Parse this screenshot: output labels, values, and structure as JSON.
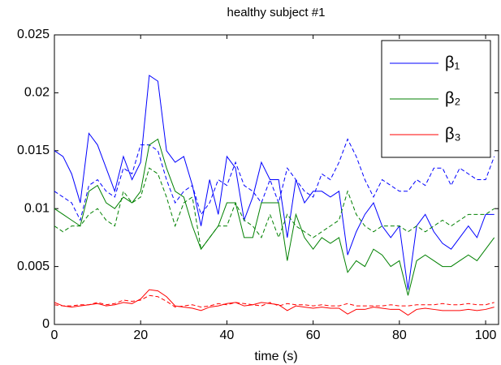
{
  "chart_data": {
    "type": "line",
    "title": "healthy subject #1",
    "x_label": "time (s)",
    "x": [
      0,
      2,
      4,
      6,
      8,
      10,
      12,
      14,
      16,
      18,
      20,
      22,
      24,
      26,
      28,
      30,
      32,
      34,
      36,
      38,
      40,
      42,
      44,
      46,
      48,
      50,
      52,
      54,
      56,
      58,
      60,
      62,
      64,
      66,
      68,
      70,
      72,
      74,
      76,
      78,
      80,
      82,
      84,
      86,
      88,
      90,
      92,
      94,
      96,
      98,
      100,
      102
    ],
    "series": [
      {
        "name": "β₁",
        "color": "#0000ff",
        "dashed": false,
        "values": [
          0.015,
          0.0145,
          0.013,
          0.0105,
          0.0165,
          0.0155,
          0.0135,
          0.0115,
          0.0145,
          0.0125,
          0.014,
          0.0215,
          0.021,
          0.015,
          0.014,
          0.0145,
          0.012,
          0.0085,
          0.0125,
          0.0095,
          0.0145,
          0.0135,
          0.009,
          0.011,
          0.014,
          0.0125,
          0.0125,
          0.0075,
          0.0125,
          0.0105,
          0.0115,
          0.0115,
          0.011,
          0.0115,
          0.006,
          0.008,
          0.0095,
          0.0105,
          0.0085,
          0.0075,
          0.0085,
          0.003,
          0.0085,
          0.0095,
          0.008,
          0.007,
          0.0065,
          0.0075,
          0.0085,
          0.0075,
          0.0095,
          0.0095
        ]
      },
      {
        "color": "#0000ff",
        "dashed": true,
        "values": [
          0.0115,
          0.011,
          0.0105,
          0.009,
          0.012,
          0.0125,
          0.0115,
          0.011,
          0.0135,
          0.013,
          0.0155,
          0.0155,
          0.015,
          0.0125,
          0.0105,
          0.0115,
          0.012,
          0.0095,
          0.0105,
          0.0125,
          0.012,
          0.014,
          0.012,
          0.0115,
          0.0105,
          0.0125,
          0.0105,
          0.0135,
          0.0125,
          0.0115,
          0.011,
          0.013,
          0.0125,
          0.014,
          0.016,
          0.0145,
          0.0125,
          0.011,
          0.0125,
          0.012,
          0.0115,
          0.0115,
          0.0125,
          0.012,
          0.0135,
          0.0135,
          0.012,
          0.0135,
          0.013,
          0.0125,
          0.0125,
          0.0145
        ]
      },
      {
        "name": "β₂",
        "color": "#008000",
        "dashed": false,
        "values": [
          0.01,
          0.0095,
          0.009,
          0.0085,
          0.0115,
          0.012,
          0.0105,
          0.01,
          0.011,
          0.0105,
          0.0115,
          0.0155,
          0.016,
          0.0135,
          0.0115,
          0.011,
          0.0085,
          0.0065,
          0.0075,
          0.0085,
          0.0105,
          0.0105,
          0.0075,
          0.0075,
          0.0105,
          0.0105,
          0.0105,
          0.0055,
          0.0095,
          0.0075,
          0.0065,
          0.0075,
          0.007,
          0.0075,
          0.0045,
          0.0055,
          0.005,
          0.0065,
          0.006,
          0.005,
          0.0055,
          0.0025,
          0.0055,
          0.006,
          0.0055,
          0.005,
          0.005,
          0.0055,
          0.006,
          0.0055,
          0.0065,
          0.0075
        ]
      },
      {
        "color": "#008000",
        "dashed": true,
        "values": [
          0.0085,
          0.008,
          0.0085,
          0.0085,
          0.0095,
          0.01,
          0.009,
          0.0085,
          0.0115,
          0.0105,
          0.011,
          0.0135,
          0.013,
          0.011,
          0.0085,
          0.0105,
          0.011,
          0.0065,
          0.0075,
          0.0085,
          0.0085,
          0.0105,
          0.009,
          0.0085,
          0.0075,
          0.0095,
          0.0075,
          0.0095,
          0.0085,
          0.008,
          0.0075,
          0.008,
          0.0085,
          0.009,
          0.0115,
          0.0095,
          0.0085,
          0.008,
          0.0085,
          0.0085,
          0.0085,
          0.008,
          0.0085,
          0.008,
          0.0085,
          0.009,
          0.0085,
          0.009,
          0.0095,
          0.0095,
          0.0095,
          0.01
        ]
      },
      {
        "name": "β₃",
        "color": "#ff0000",
        "dashed": false,
        "values": [
          0.0019,
          0.0016,
          0.0015,
          0.0016,
          0.0017,
          0.0018,
          0.0016,
          0.0017,
          0.0019,
          0.0018,
          0.0022,
          0.003,
          0.0029,
          0.0024,
          0.0016,
          0.0015,
          0.0014,
          0.0012,
          0.0015,
          0.0016,
          0.0018,
          0.0019,
          0.0016,
          0.0017,
          0.0019,
          0.0018,
          0.0017,
          0.0012,
          0.0016,
          0.0015,
          0.0014,
          0.0015,
          0.0014,
          0.0014,
          0.0009,
          0.0013,
          0.0013,
          0.0015,
          0.0014,
          0.0013,
          0.0013,
          0.0008,
          0.0013,
          0.0014,
          0.0013,
          0.0012,
          0.0012,
          0.0012,
          0.0013,
          0.0012,
          0.0013,
          0.0015
        ]
      },
      {
        "color": "#ff0000",
        "dashed": true,
        "values": [
          0.0017,
          0.0016,
          0.0016,
          0.0017,
          0.0017,
          0.0019,
          0.0017,
          0.0018,
          0.0021,
          0.002,
          0.0021,
          0.0025,
          0.0024,
          0.002,
          0.0015,
          0.0016,
          0.0017,
          0.0015,
          0.0016,
          0.0018,
          0.0017,
          0.0019,
          0.0018,
          0.0017,
          0.0016,
          0.0019,
          0.0016,
          0.0018,
          0.0017,
          0.0017,
          0.0016,
          0.0017,
          0.0016,
          0.0016,
          0.0018,
          0.0016,
          0.0016,
          0.0016,
          0.0016,
          0.0017,
          0.0016,
          0.0016,
          0.0017,
          0.0017,
          0.0017,
          0.0018,
          0.0017,
          0.0017,
          0.0018,
          0.0017,
          0.0017,
          0.0019
        ]
      }
    ],
    "xlim": [
      0,
      103
    ],
    "xticks": [
      0,
      20,
      40,
      60,
      80,
      100
    ],
    "ylim": [
      0,
      0.025
    ],
    "yticks": [
      0,
      0.005,
      0.01,
      0.015,
      0.02,
      0.025
    ],
    "legend": "upper right",
    "grid": false
  }
}
